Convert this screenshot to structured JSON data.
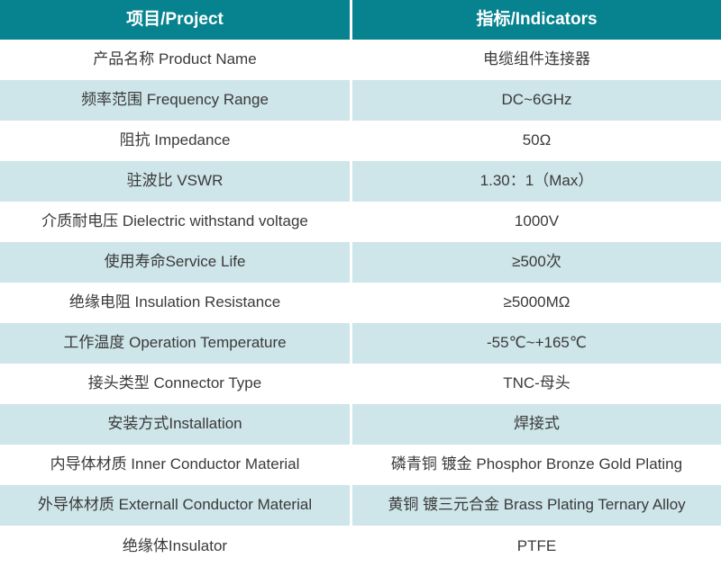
{
  "colors": {
    "header_bg": "#06838F",
    "header_text": "#FFFFFF",
    "row_alt_bg": "#CEE5E9",
    "row_bg": "#FFFFFF",
    "cell_text": "#3A3A3A",
    "divider": "#FFFFFF"
  },
  "table": {
    "columns": [
      {
        "label": "项目/Project"
      },
      {
        "label": "指标/Indicators"
      }
    ],
    "rows": [
      {
        "project": "产品名称 Product Name",
        "indicator": "电缆组件连接器"
      },
      {
        "project": "频率范围 Frequency Range",
        "indicator": "DC~6GHz"
      },
      {
        "project": "阻抗 Impedance",
        "indicator": "50Ω"
      },
      {
        "project": "驻波比 VSWR",
        "indicator": "1.30：1（Max）"
      },
      {
        "project": "介质耐电压 Dielectric withstand voltage",
        "indicator": "1000V"
      },
      {
        "project": "使用寿命Service Life",
        "indicator": "≥500次"
      },
      {
        "project": "绝缘电阻 Insulation Resistance",
        "indicator": "≥5000MΩ"
      },
      {
        "project": "工作温度 Operation Temperature",
        "indicator": "-55℃~+165℃"
      },
      {
        "project": "接头类型 Connector Type",
        "indicator": "TNC-母头"
      },
      {
        "project": "安装方式Installation",
        "indicator": "焊接式"
      },
      {
        "project": "内导体材质 Inner Conductor Material",
        "indicator": "磷青铜 镀金 Phosphor Bronze Gold Plating"
      },
      {
        "project": "外导体材质 Externall Conductor Material",
        "indicator": "黄铜 镀三元合金 Brass Plating Ternary Alloy"
      },
      {
        "project": "绝缘体Insulator",
        "indicator": "PTFE"
      }
    ]
  }
}
